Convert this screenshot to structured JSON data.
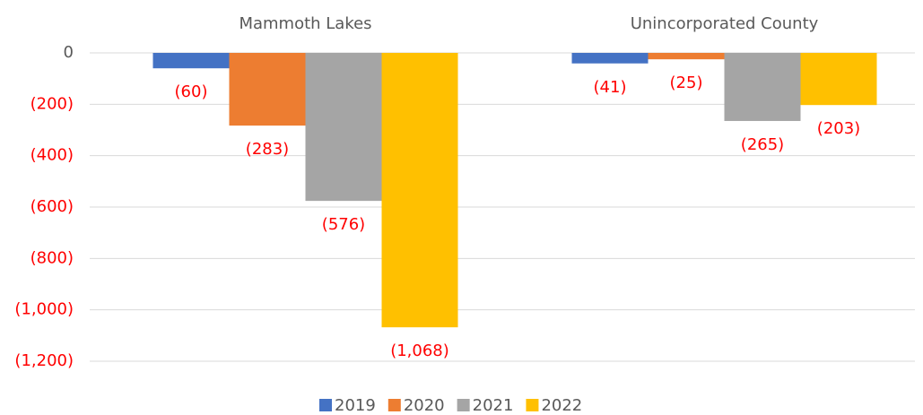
{
  "chart_data": {
    "type": "bar",
    "categories": [
      "Mammoth Lakes",
      "Unincorporated County"
    ],
    "series": [
      {
        "name": "2019",
        "color": "#4472c4",
        "values": [
          -60,
          -41
        ],
        "value_labels": [
          "(60)",
          "(41)"
        ]
      },
      {
        "name": "2020",
        "color": "#ed7d31",
        "values": [
          -283,
          -25
        ],
        "value_labels": [
          "(283)",
          "(25)"
        ]
      },
      {
        "name": "2021",
        "color": "#a5a5a5",
        "values": [
          -576,
          -265
        ],
        "value_labels": [
          "(576)",
          "(265)"
        ]
      },
      {
        "name": "2022",
        "color": "#ffc000",
        "values": [
          -1068,
          -203
        ],
        "value_labels": [
          "(1,068)",
          "(203)"
        ]
      }
    ],
    "ylim": [
      -1200,
      0
    ],
    "yticks": [
      0,
      {
        "value": -200,
        "label": "(200)"
      },
      {
        "value": -400,
        "label": "(400)"
      },
      {
        "value": -600,
        "label": "(600)"
      },
      {
        "value": -800,
        "label": "(800)"
      },
      {
        "value": -1000,
        "label": "(1,000)"
      },
      {
        "value": -1200,
        "label": "(1,200)"
      }
    ],
    "grid": true,
    "legend": "bottom",
    "negative_label_color": "#ff0000"
  }
}
